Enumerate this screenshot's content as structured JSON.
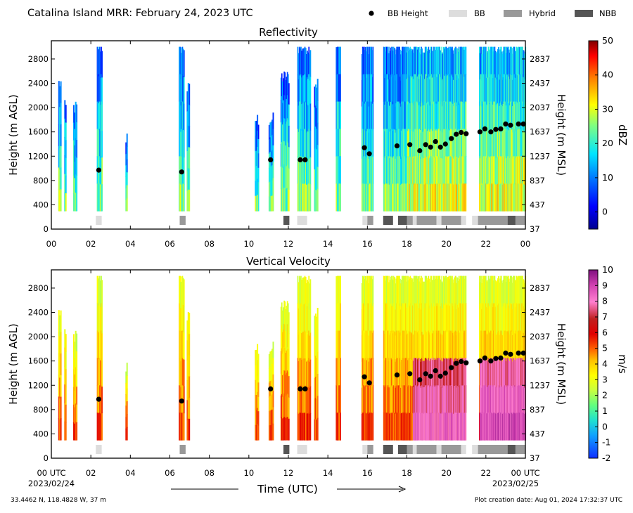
{
  "suptitle": "Catalina Island MRR:  February 24, 2023 UTC",
  "legend": [
    {
      "label": "BB Height",
      "kind": "dot",
      "color": "#000000"
    },
    {
      "label": "BB",
      "kind": "swatch",
      "color": "#dddddd"
    },
    {
      "label": "Hybrid",
      "kind": "swatch",
      "color": "#999999"
    },
    {
      "label": "NBB",
      "kind": "swatch",
      "color": "#555555"
    }
  ],
  "xaxis": {
    "label": "Time (UTC)",
    "ticks": [
      0,
      2,
      4,
      6,
      8,
      10,
      12,
      14,
      16,
      18,
      20,
      22,
      24
    ],
    "tick_labels_top": [
      "00",
      "02",
      "04",
      "06",
      "08",
      "10",
      "12",
      "14",
      "16",
      "18",
      "20",
      "22",
      "00"
    ],
    "tick_labels_bottom": [
      "00 UTC",
      "02",
      "04",
      "06",
      "08",
      "10",
      "12",
      "14",
      "16",
      "18",
      "20",
      "22",
      "00 UTC"
    ],
    "start_date": "2023/02/24",
    "end_date": "2023/02/25"
  },
  "footer": {
    "left": "33.4462 N, 118.4828 W, 37 m",
    "right": "Plot creation date: Aug 01, 2024 17:32:37 UTC"
  },
  "chart_data": [
    {
      "type": "heatmap",
      "title": "Reflectivity",
      "ylabel": "Height (m AGL)",
      "ylabel_right": "Height (m MSL)",
      "ylim": [
        0,
        3100
      ],
      "xlim": [
        0,
        24
      ],
      "yticks": [
        0,
        400,
        800,
        1200,
        1600,
        2000,
        2400,
        2800
      ],
      "yticks_right": [
        37,
        437,
        837,
        1237,
        1637,
        2037,
        2437,
        2837
      ],
      "colorbar": {
        "label": "dBZ",
        "min": -5,
        "max": 50,
        "ticks": [
          0,
          10,
          20,
          30,
          40,
          50
        ]
      },
      "bb_height": {
        "x": [
          2.4,
          6.6,
          11.1,
          12.6,
          12.85,
          15.85,
          16.1,
          17.5,
          18.15,
          18.65,
          18.95,
          19.2,
          19.45,
          19.7,
          19.95,
          20.25,
          20.5,
          20.75,
          21.0,
          21.7,
          21.95,
          22.25,
          22.5,
          22.75,
          23.0,
          23.25,
          23.65,
          23.9
        ],
        "y": [
          970,
          940,
          1140,
          1140,
          1140,
          1340,
          1240,
          1370,
          1390,
          1290,
          1390,
          1350,
          1440,
          1350,
          1400,
          1490,
          1560,
          1590,
          1570,
          1600,
          1650,
          1600,
          1640,
          1650,
          1730,
          1710,
          1730,
          1730
        ]
      },
      "bb_type": [
        {
          "start": 2.25,
          "end": 2.55,
          "type": "BB"
        },
        {
          "start": 6.5,
          "end": 6.8,
          "type": "Hybrid"
        },
        {
          "start": 11.75,
          "end": 12.05,
          "type": "NBB"
        },
        {
          "start": 12.45,
          "end": 12.95,
          "type": "BB"
        },
        {
          "start": 15.75,
          "end": 16.0,
          "type": "BB"
        },
        {
          "start": 16.0,
          "end": 16.3,
          "type": "Hybrid"
        },
        {
          "start": 16.8,
          "end": 17.3,
          "type": "NBB"
        },
        {
          "start": 17.55,
          "end": 18.0,
          "type": "NBB"
        },
        {
          "start": 18.0,
          "end": 18.3,
          "type": "Hybrid"
        },
        {
          "start": 18.3,
          "end": 18.5,
          "type": "BB"
        },
        {
          "start": 18.5,
          "end": 19.5,
          "type": "Hybrid"
        },
        {
          "start": 19.5,
          "end": 19.75,
          "type": "BB"
        },
        {
          "start": 19.75,
          "end": 20.75,
          "type": "Hybrid"
        },
        {
          "start": 20.75,
          "end": 21.0,
          "type": "BB"
        },
        {
          "start": 21.3,
          "end": 21.6,
          "type": "BB"
        },
        {
          "start": 21.6,
          "end": 23.1,
          "type": "Hybrid"
        },
        {
          "start": 23.1,
          "end": 23.5,
          "type": "NBB"
        },
        {
          "start": 23.5,
          "end": 24.0,
          "type": "Hybrid"
        }
      ]
    },
    {
      "type": "heatmap",
      "title": "Vertical Velocity",
      "ylabel": "Height (m AGL)",
      "ylabel_right": "Height (m MSL)",
      "ylim": [
        0,
        3100
      ],
      "xlim": [
        0,
        24
      ],
      "yticks": [
        0,
        400,
        800,
        1200,
        1600,
        2000,
        2400,
        2800
      ],
      "yticks_right": [
        37,
        437,
        837,
        1237,
        1637,
        2037,
        2437,
        2837
      ],
      "colorbar": {
        "label": "m/s",
        "min": -2,
        "max": 10,
        "ticks": [
          -2,
          -1,
          0,
          1,
          2,
          3,
          4,
          5,
          6,
          7,
          8,
          9,
          10
        ]
      },
      "bb_height": {
        "x": [
          2.4,
          6.6,
          11.1,
          12.6,
          12.85,
          15.85,
          16.1,
          17.5,
          18.15,
          18.65,
          18.95,
          19.2,
          19.45,
          19.7,
          19.95,
          20.25,
          20.5,
          20.75,
          21.0,
          21.7,
          21.95,
          22.25,
          22.5,
          22.75,
          23.0,
          23.25,
          23.65,
          23.9
        ],
        "y": [
          970,
          940,
          1140,
          1140,
          1140,
          1340,
          1240,
          1370,
          1390,
          1290,
          1390,
          1350,
          1440,
          1350,
          1400,
          1490,
          1560,
          1590,
          1570,
          1600,
          1650,
          1600,
          1640,
          1650,
          1730,
          1710,
          1730,
          1730
        ]
      },
      "bb_type": [
        {
          "start": 2.25,
          "end": 2.55,
          "type": "BB"
        },
        {
          "start": 6.5,
          "end": 6.8,
          "type": "Hybrid"
        },
        {
          "start": 11.75,
          "end": 12.05,
          "type": "NBB"
        },
        {
          "start": 12.45,
          "end": 12.95,
          "type": "BB"
        },
        {
          "start": 15.75,
          "end": 16.0,
          "type": "BB"
        },
        {
          "start": 16.0,
          "end": 16.3,
          "type": "Hybrid"
        },
        {
          "start": 16.8,
          "end": 17.3,
          "type": "NBB"
        },
        {
          "start": 17.55,
          "end": 18.0,
          "type": "NBB"
        },
        {
          "start": 18.0,
          "end": 18.3,
          "type": "Hybrid"
        },
        {
          "start": 18.3,
          "end": 18.5,
          "type": "BB"
        },
        {
          "start": 18.5,
          "end": 19.5,
          "type": "Hybrid"
        },
        {
          "start": 19.5,
          "end": 19.75,
          "type": "BB"
        },
        {
          "start": 19.75,
          "end": 20.75,
          "type": "Hybrid"
        },
        {
          "start": 20.75,
          "end": 21.0,
          "type": "BB"
        },
        {
          "start": 21.3,
          "end": 21.6,
          "type": "BB"
        },
        {
          "start": 21.6,
          "end": 23.1,
          "type": "Hybrid"
        },
        {
          "start": 23.1,
          "end": 23.5,
          "type": "NBB"
        },
        {
          "start": 23.5,
          "end": 24.0,
          "type": "Hybrid"
        }
      ]
    }
  ]
}
